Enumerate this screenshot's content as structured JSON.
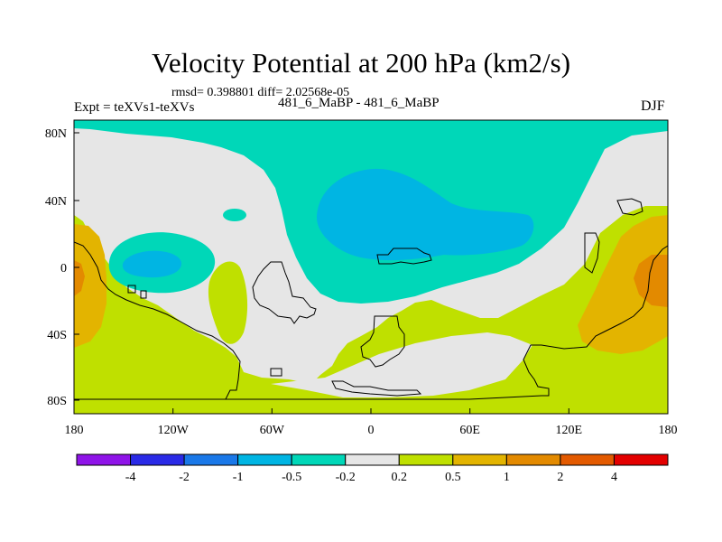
{
  "title": "Velocity Potential at 200 hPa (km2/s)",
  "stats": "rmsd= 0.398801 diff= 2.02568e-05",
  "experiment": "Expt = teXVs1-teXVs",
  "center_label": "481_6_MaBP - 481_6_MaBP",
  "season": "DJF",
  "colors": {
    "bg_gray": "#e6e6e6",
    "yellow_green": "#bfe000",
    "cyan_light": "#00d7b8",
    "cyan": "#00b5e3",
    "orange_light": "#e3b400",
    "orange": "#e38a00"
  },
  "map": {
    "lon_ticks": [
      "180",
      "120W",
      "60W",
      "0",
      "60E",
      "120E",
      "180"
    ],
    "lat_ticks": [
      "80N",
      "40N",
      "0",
      "40S",
      "80S"
    ]
  },
  "colorbar": {
    "colors": [
      "#8f14e8",
      "#2a2ae6",
      "#1a78e8",
      "#00b5e3",
      "#00d7b8",
      "#e6e6e6",
      "#bfe000",
      "#e3b400",
      "#e38a00",
      "#e35a00",
      "#e30000"
    ],
    "labels": [
      "-4",
      "-2",
      "-1",
      "-0.5",
      "-0.2",
      "0.2",
      "0.5",
      "1",
      "2",
      "4"
    ]
  }
}
